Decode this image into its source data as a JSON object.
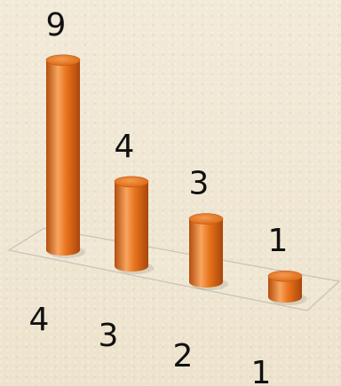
{
  "chart_data": {
    "type": "bar",
    "categories": [
      "4",
      "3",
      "2",
      "1"
    ],
    "values": [
      9,
      4,
      3,
      1
    ],
    "data_labels": [
      "9",
      "4",
      "3",
      "1"
    ],
    "title": "",
    "xlabel": "",
    "ylabel": "",
    "ylim": [
      0,
      9
    ],
    "grid": false,
    "legend": "none",
    "colors": {
      "bar": "#e8731c",
      "bar_dark": "#b44e0d",
      "bar_light": "#f7a560",
      "floor_edge": "#c9c2b4"
    }
  }
}
